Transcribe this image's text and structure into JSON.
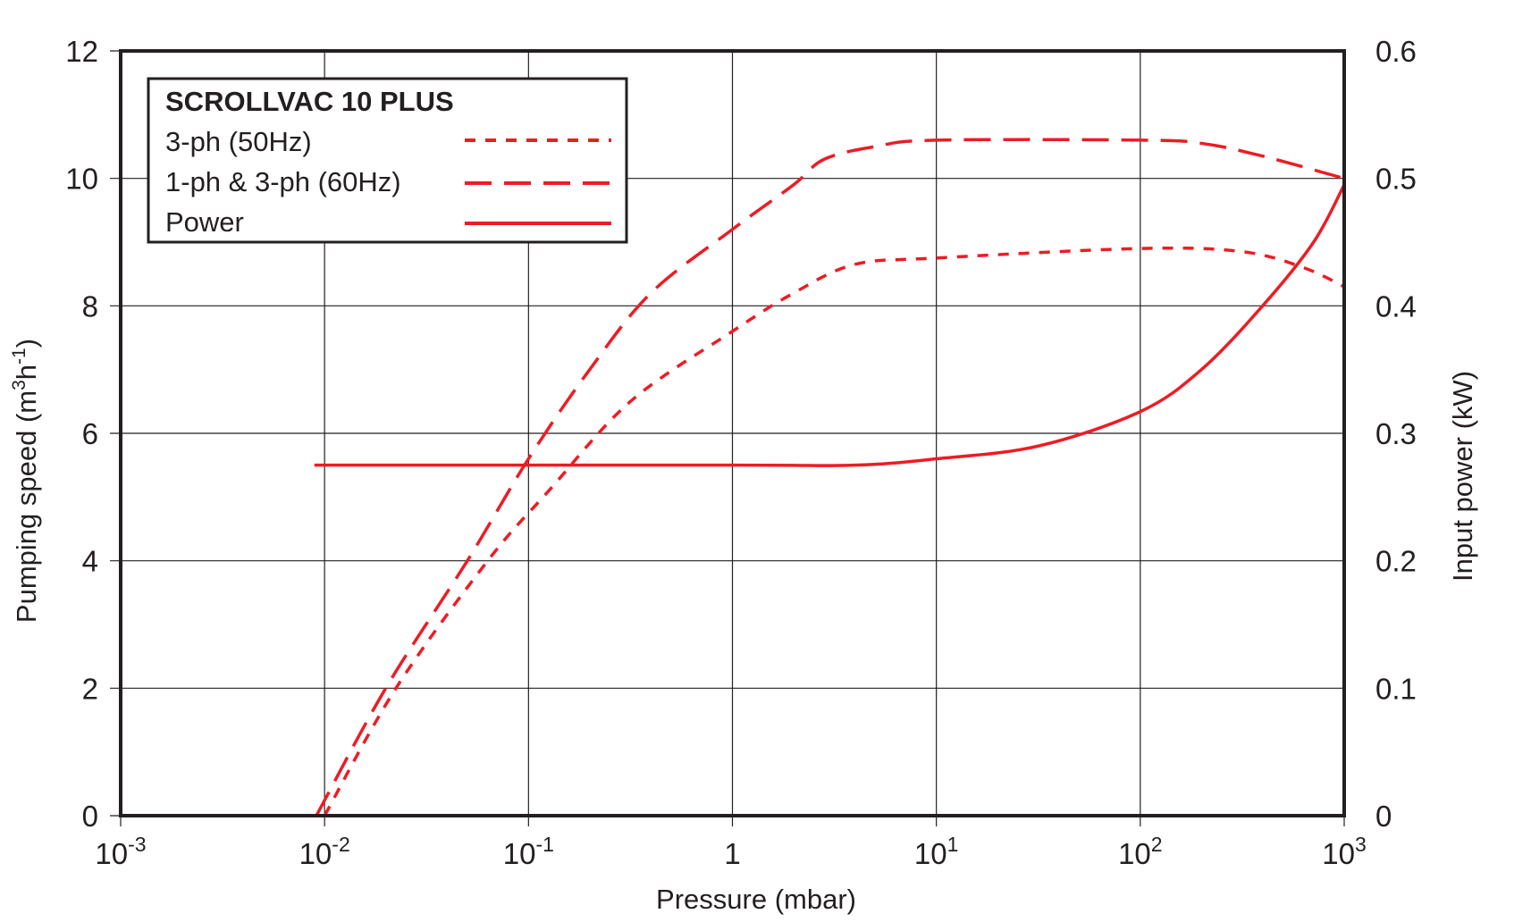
{
  "chart_data": {
    "type": "line",
    "title": "SCROLLVAC 10 PLUS",
    "xlabel": "Pressure (mbar)",
    "ylabel": "Pumping speed (m3h-1)",
    "ylabel_parts": {
      "base": "Pumping speed (m",
      "sup1": "3",
      "mid": "h",
      "sup2": "-1",
      "end": ")"
    },
    "y2label": "Input power (kW)",
    "xscale": "log",
    "xlim": [
      0.001,
      1000
    ],
    "ylim": [
      0,
      12
    ],
    "y2lim": [
      0,
      0.6
    ],
    "grid": true,
    "legend_placement": "top-left",
    "x_ticks": [
      {
        "log": -3,
        "base": "10",
        "exp": "-3"
      },
      {
        "log": -2,
        "base": "10",
        "exp": "-2"
      },
      {
        "log": -1,
        "base": "10",
        "exp": "-1"
      },
      {
        "log": 0,
        "base": "1",
        "exp": ""
      },
      {
        "log": 1,
        "base": "10",
        "exp": "1"
      },
      {
        "log": 2,
        "base": "10",
        "exp": "2"
      },
      {
        "log": 3,
        "base": "10",
        "exp": "3"
      }
    ],
    "y_ticks": [
      "0",
      "2",
      "4",
      "6",
      "8",
      "10",
      "12"
    ],
    "y2_ticks": [
      "0",
      "0.1",
      "0.2",
      "0.3",
      "0.4",
      "0.5",
      "0.6"
    ],
    "series": [
      {
        "name": "3-ph (50Hz)",
        "style": "short-dash",
        "axis": "left",
        "color": "#ed1c24",
        "points_log10x": [
          [
            -2.0,
            0
          ],
          [
            -1.65,
            2
          ],
          [
            -1.2,
            4
          ],
          [
            -0.9,
            5.1
          ],
          [
            -0.5,
            6.5
          ],
          [
            0,
            7.6
          ],
          [
            0.3,
            8.2
          ],
          [
            0.6,
            8.65
          ],
          [
            1,
            8.75
          ],
          [
            2,
            8.9
          ],
          [
            2.5,
            8.85
          ],
          [
            2.8,
            8.6
          ],
          [
            3,
            8.3
          ]
        ]
      },
      {
        "name": "1-ph & 3-ph (60Hz)",
        "style": "long-dash",
        "axis": "left",
        "color": "#ed1c24",
        "points_log10x": [
          [
            -2.04,
            0
          ],
          [
            -1.7,
            2
          ],
          [
            -1.3,
            4
          ],
          [
            -1,
            5.6
          ],
          [
            -0.7,
            7
          ],
          [
            -0.4,
            8.2
          ],
          [
            0,
            9.2
          ],
          [
            0.3,
            9.9
          ],
          [
            0.45,
            10.3
          ],
          [
            0.7,
            10.5
          ],
          [
            1,
            10.6
          ],
          [
            2,
            10.6
          ],
          [
            2.3,
            10.55
          ],
          [
            2.6,
            10.35
          ],
          [
            3,
            10
          ]
        ]
      },
      {
        "name": "Power",
        "style": "solid",
        "axis": "right",
        "color": "#ed1c24",
        "points_log10x": [
          [
            -2.05,
            0.275
          ],
          [
            0,
            0.275
          ],
          [
            0.6,
            0.275
          ],
          [
            1,
            0.28
          ],
          [
            1.5,
            0.29
          ],
          [
            2,
            0.317
          ],
          [
            2.3,
            0.35
          ],
          [
            2.6,
            0.4
          ],
          [
            2.85,
            0.45
          ],
          [
            3,
            0.495
          ]
        ]
      }
    ]
  }
}
